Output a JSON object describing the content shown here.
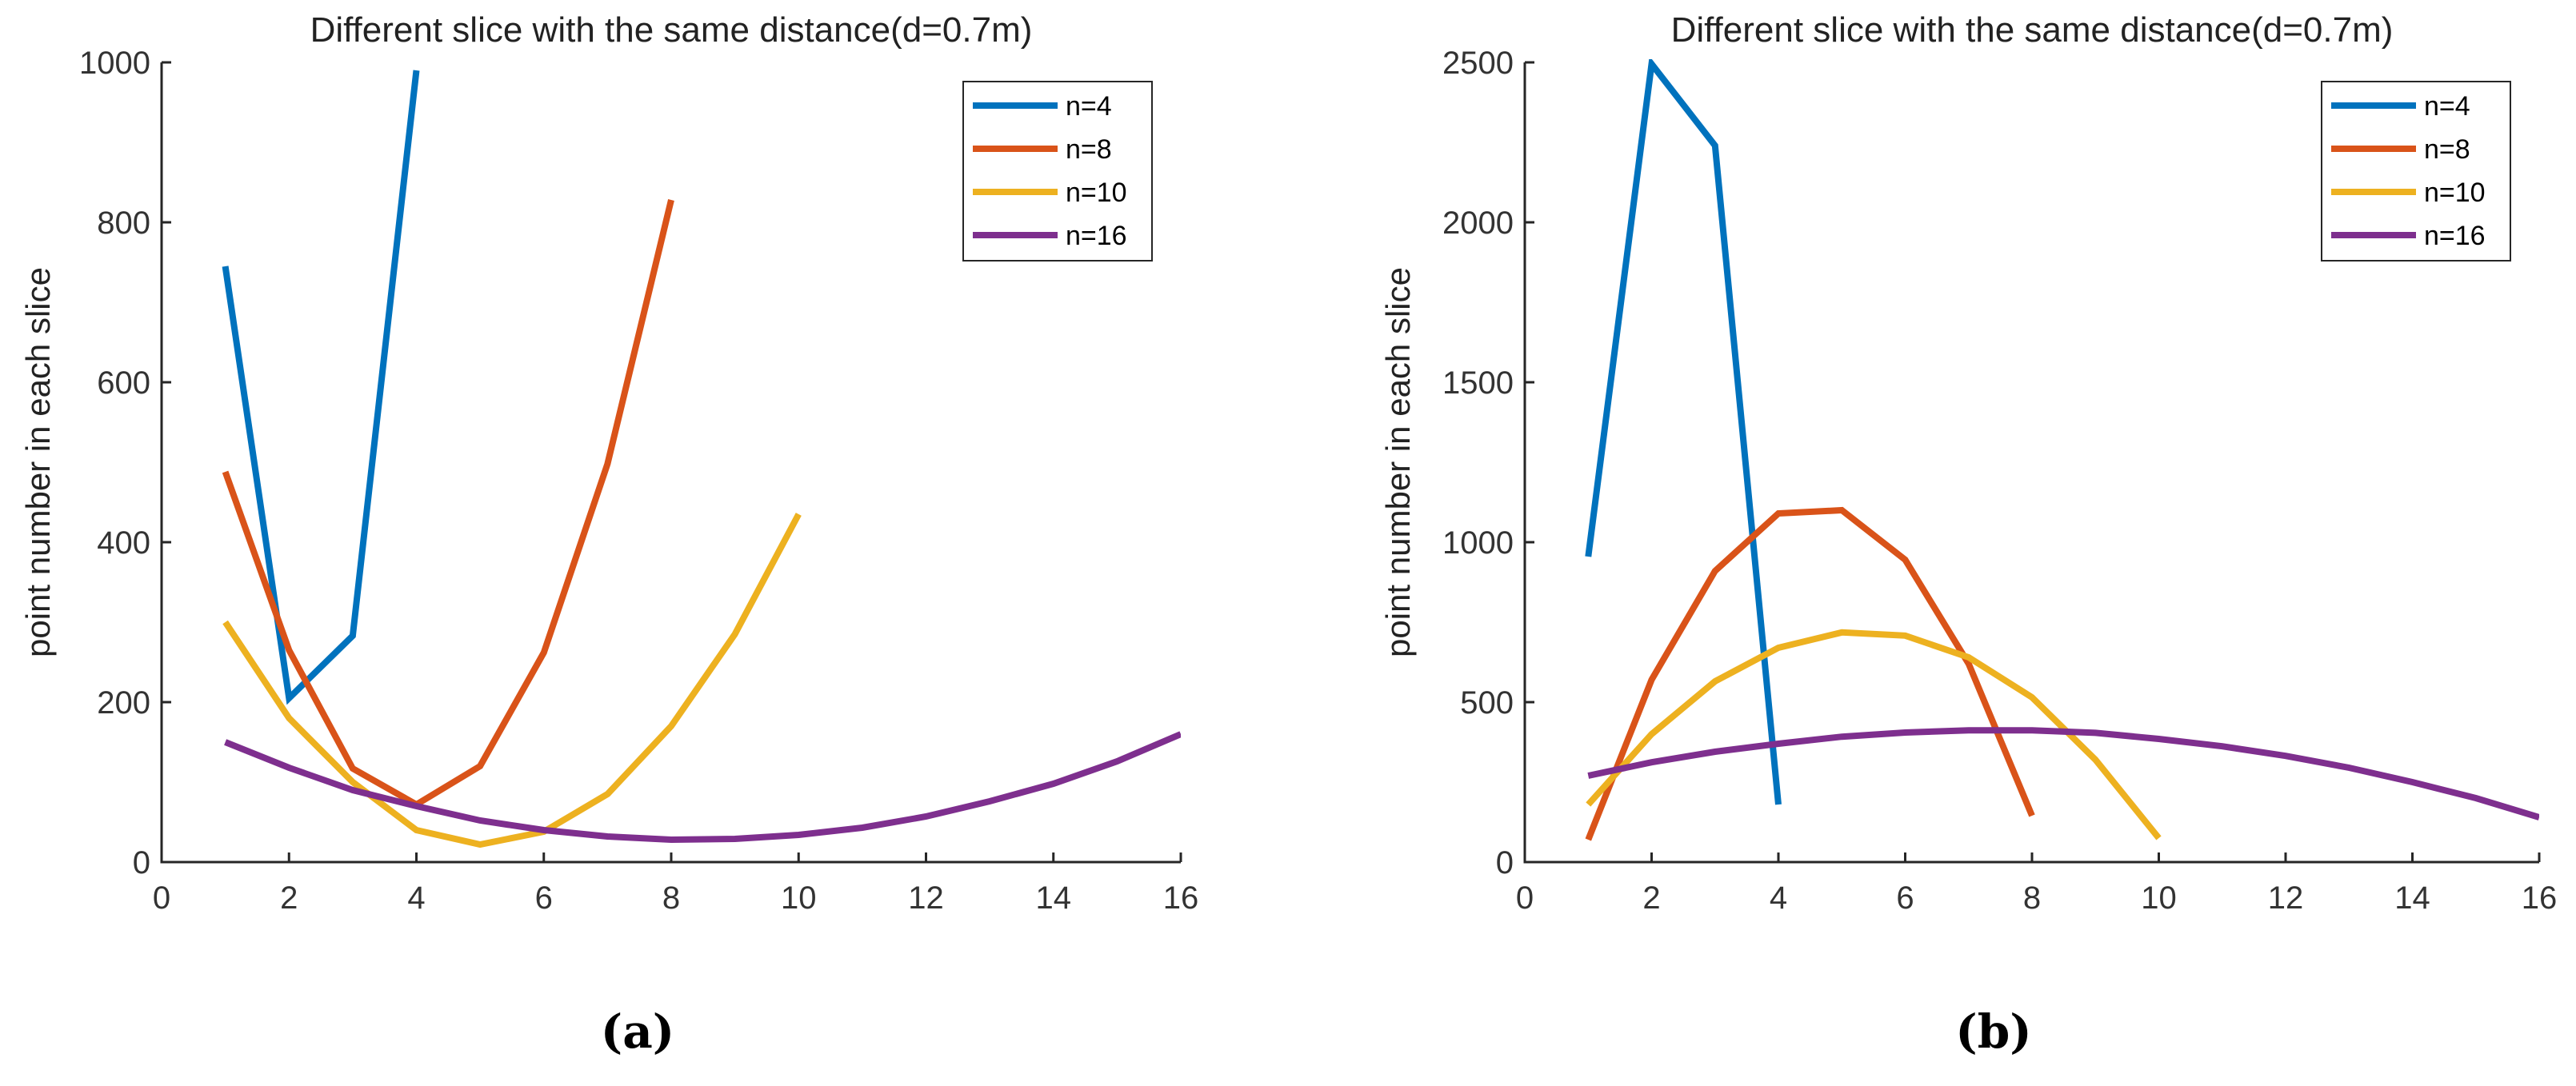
{
  "chart_data": [
    {
      "type": "line",
      "panel_label": "(a)",
      "title": "Different slice with the same distance(d=0.7m)",
      "xlabel": "",
      "ylabel": "point number in each slice",
      "xlim": [
        0,
        16
      ],
      "ylim": [
        0,
        1000
      ],
      "xticks": [
        0,
        2,
        4,
        6,
        8,
        10,
        12,
        14,
        16
      ],
      "yticks": [
        0,
        200,
        400,
        600,
        800,
        1000
      ],
      "legend_position": "top-right",
      "series": [
        {
          "name": "n=4",
          "color": "#0072BD",
          "x": [
            1,
            2,
            3,
            4
          ],
          "y": [
            745,
            205,
            283,
            990
          ]
        },
        {
          "name": "n=8",
          "color": "#D95319",
          "x": [
            1,
            2,
            3,
            4,
            5,
            6,
            7,
            8
          ],
          "y": [
            488,
            265,
            117,
            72,
            120,
            262,
            498,
            828
          ]
        },
        {
          "name": "n=10",
          "color": "#EDB120",
          "x": [
            1,
            2,
            3,
            4,
            5,
            6,
            7,
            8,
            9,
            10
          ],
          "y": [
            300,
            180,
            100,
            40,
            22,
            38,
            85,
            170,
            285,
            435
          ]
        },
        {
          "name": "n=16",
          "color": "#7E2F8E",
          "x": [
            1,
            2,
            3,
            4,
            5,
            6,
            7,
            8,
            9,
            10,
            11,
            12,
            13,
            14,
            15,
            16
          ],
          "y": [
            150,
            118,
            90,
            70,
            52,
            40,
            32,
            28,
            29,
            34,
            43,
            57,
            76,
            98,
            126,
            160
          ]
        }
      ]
    },
    {
      "type": "line",
      "panel_label": "(b)",
      "title": "Different slice with the same distance(d=0.7m)",
      "xlabel": "",
      "ylabel": "point number in each slice",
      "xlim": [
        0,
        16
      ],
      "ylim": [
        0,
        2500
      ],
      "xticks": [
        0,
        2,
        4,
        6,
        8,
        10,
        12,
        14,
        16
      ],
      "yticks": [
        0,
        500,
        1000,
        1500,
        2000,
        2500
      ],
      "legend_position": "top-right",
      "series": [
        {
          "name": "n=4",
          "color": "#0072BD",
          "x": [
            1,
            2,
            3,
            4
          ],
          "y": [
            955,
            2495,
            2240,
            180
          ]
        },
        {
          "name": "n=8",
          "color": "#D95319",
          "x": [
            1,
            2,
            3,
            4,
            5,
            6,
            7,
            8
          ],
          "y": [
            70,
            570,
            910,
            1090,
            1100,
            945,
            620,
            145
          ]
        },
        {
          "name": "n=10",
          "color": "#EDB120",
          "x": [
            1,
            2,
            3,
            4,
            5,
            6,
            7,
            8,
            9,
            10
          ],
          "y": [
            180,
            400,
            565,
            670,
            718,
            708,
            640,
            515,
            320,
            75
          ]
        },
        {
          "name": "n=16",
          "color": "#7E2F8E",
          "x": [
            1,
            2,
            3,
            4,
            5,
            6,
            7,
            8,
            9,
            10,
            11,
            12,
            13,
            14,
            15,
            16
          ],
          "y": [
            270,
            312,
            345,
            370,
            392,
            405,
            412,
            412,
            404,
            385,
            362,
            332,
            295,
            250,
            200,
            140
          ]
        }
      ]
    }
  ]
}
